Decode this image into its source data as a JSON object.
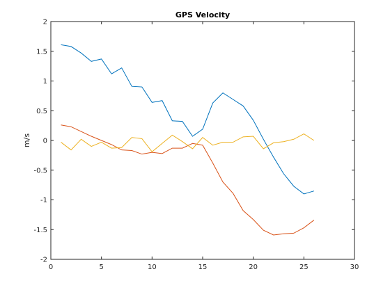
{
  "chart_data": {
    "type": "line",
    "title": "GPS Velocity",
    "xlabel": "",
    "ylabel": "m/s",
    "xlim": [
      0,
      30
    ],
    "ylim": [
      -2,
      2
    ],
    "x_ticks": [
      0,
      5,
      10,
      15,
      20,
      25,
      30
    ],
    "y_ticks": [
      -2,
      -1.5,
      -1,
      -0.5,
      0,
      0.5,
      1,
      1.5,
      2
    ],
    "grid": false,
    "legend": "none",
    "x": [
      1,
      2,
      3,
      4,
      5,
      6,
      7,
      8,
      9,
      10,
      11,
      12,
      13,
      14,
      15,
      16,
      17,
      18,
      19,
      20,
      21,
      22,
      23,
      24,
      25,
      26
    ],
    "series": [
      {
        "color": "#0072bd",
        "values": [
          1.61,
          1.58,
          1.47,
          1.33,
          1.37,
          1.12,
          1.22,
          0.91,
          0.9,
          0.64,
          0.67,
          0.33,
          0.32,
          0.07,
          0.19,
          0.63,
          0.8,
          0.69,
          0.58,
          0.34,
          0.02,
          -0.28,
          -0.56,
          -0.77,
          -0.9,
          -0.85
        ]
      },
      {
        "color": "#d95319",
        "values": [
          0.26,
          0.23,
          0.15,
          0.07,
          0.0,
          -0.07,
          -0.16,
          -0.17,
          -0.23,
          -0.2,
          -0.22,
          -0.13,
          -0.13,
          -0.05,
          -0.08,
          -0.38,
          -0.7,
          -0.89,
          -1.18,
          -1.33,
          -1.51,
          -1.59,
          -1.57,
          -1.56,
          -1.47,
          -1.34
        ]
      },
      {
        "color": "#edb120",
        "values": [
          -0.03,
          -0.16,
          0.02,
          -0.1,
          -0.03,
          -0.13,
          -0.12,
          0.05,
          0.03,
          -0.19,
          -0.05,
          0.09,
          -0.02,
          -0.14,
          0.05,
          -0.08,
          -0.03,
          -0.03,
          0.06,
          0.07,
          -0.14,
          -0.04,
          -0.02,
          0.02,
          0.11,
          0.0
        ]
      }
    ]
  }
}
